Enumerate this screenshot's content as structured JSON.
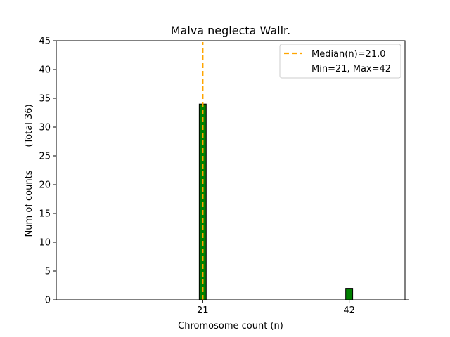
{
  "chart_data": {
    "type": "bar",
    "title": "Malva neglecta Wallr.",
    "xlabel": "Chromosome count (n)",
    "ylabel": "Num of counts",
    "ylabel_total": "(Total 36)",
    "x_ticks": [
      21,
      42
    ],
    "xlim": [
      0,
      50
    ],
    "ylim": [
      0,
      45
    ],
    "y_ticks": [
      0,
      5,
      10,
      15,
      20,
      25,
      30,
      35,
      40,
      45
    ],
    "bar_width": 1,
    "bars": [
      {
        "x": 21,
        "value": 34
      },
      {
        "x": 42,
        "value": 2
      }
    ],
    "median_line": {
      "x": 21
    },
    "legend": {
      "placement": "top-right",
      "median_label": "Median(n)=21.0",
      "range_label": "Min=21, Max=42"
    },
    "grid": false
  },
  "colors": {
    "bar_fill": "#008000",
    "bar_edge": "#000000",
    "median_line": "#FFA500",
    "axis": "#000000"
  }
}
